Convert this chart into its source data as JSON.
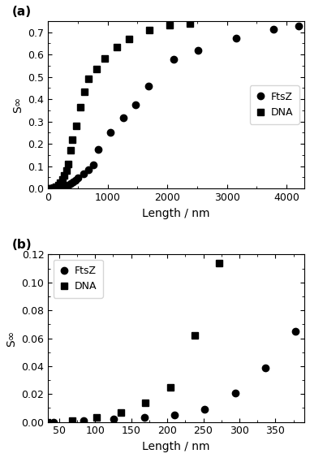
{
  "ftsz_x_a": [
    42,
    84,
    126,
    168,
    210,
    252,
    294,
    336,
    378,
    420,
    462,
    504,
    588,
    672,
    756,
    840,
    1050,
    1260,
    1470,
    1680,
    2100,
    2520,
    3150,
    3780,
    4200
  ],
  "ftsz_y_a": [
    0.0,
    0.001,
    0.002,
    0.003,
    0.005,
    0.008,
    0.011,
    0.016,
    0.021,
    0.03,
    0.038,
    0.047,
    0.065,
    0.085,
    0.107,
    0.175,
    0.252,
    0.315,
    0.375,
    0.46,
    0.58,
    0.619,
    0.672,
    0.715,
    0.728
  ],
  "dna_x_a": [
    34,
    68,
    102,
    136,
    170,
    204,
    238,
    272,
    306,
    340,
    374,
    408,
    476,
    544,
    612,
    680,
    816,
    952,
    1156,
    1360,
    1700,
    2040,
    2380
  ],
  "dna_y_a": [
    0.0,
    0.001,
    0.003,
    0.007,
    0.014,
    0.025,
    0.04,
    0.06,
    0.082,
    0.11,
    0.17,
    0.218,
    0.28,
    0.365,
    0.432,
    0.49,
    0.535,
    0.583,
    0.635,
    0.67,
    0.71,
    0.73,
    0.738
  ],
  "ftsz_x_b": [
    42,
    84,
    126,
    168,
    210,
    252,
    294,
    336,
    378
  ],
  "ftsz_y_b": [
    0.0,
    0.001,
    0.002,
    0.003,
    0.005,
    0.009,
    0.021,
    0.039,
    0.065
  ],
  "dna_x_b": [
    34,
    68,
    102,
    136,
    170,
    204,
    238,
    272
  ],
  "dna_y_b": [
    0.0,
    0.001,
    0.003,
    0.007,
    0.014,
    0.025,
    0.062,
    0.114
  ],
  "xlabel": "Length / nm",
  "ylabel": "S∞",
  "label_ftsz": "FtsZ",
  "label_dna": "DNA",
  "panel_a": "(a)",
  "panel_b": "(b)",
  "color": "black",
  "markersize_a": 6,
  "markersize_b": 6,
  "ylim_a": [
    0.0,
    0.75
  ],
  "xlim_a": [
    0,
    4300
  ],
  "yticks_a": [
    0.0,
    0.1,
    0.2,
    0.3,
    0.4,
    0.5,
    0.6,
    0.7
  ],
  "xticks_a": [
    0,
    1000,
    2000,
    3000,
    4000
  ],
  "ylim_b": [
    0.0,
    0.12
  ],
  "xlim_b": [
    35,
    390
  ],
  "yticks_b": [
    0.0,
    0.02,
    0.04,
    0.06,
    0.08,
    0.1,
    0.12
  ],
  "xticks_b": [
    50,
    100,
    150,
    200,
    250,
    300,
    350
  ],
  "legend_loc_a": "center right",
  "legend_loc_b": "upper left",
  "fontsize_label": 10,
  "fontsize_legend": 9,
  "fontsize_panel": 11
}
